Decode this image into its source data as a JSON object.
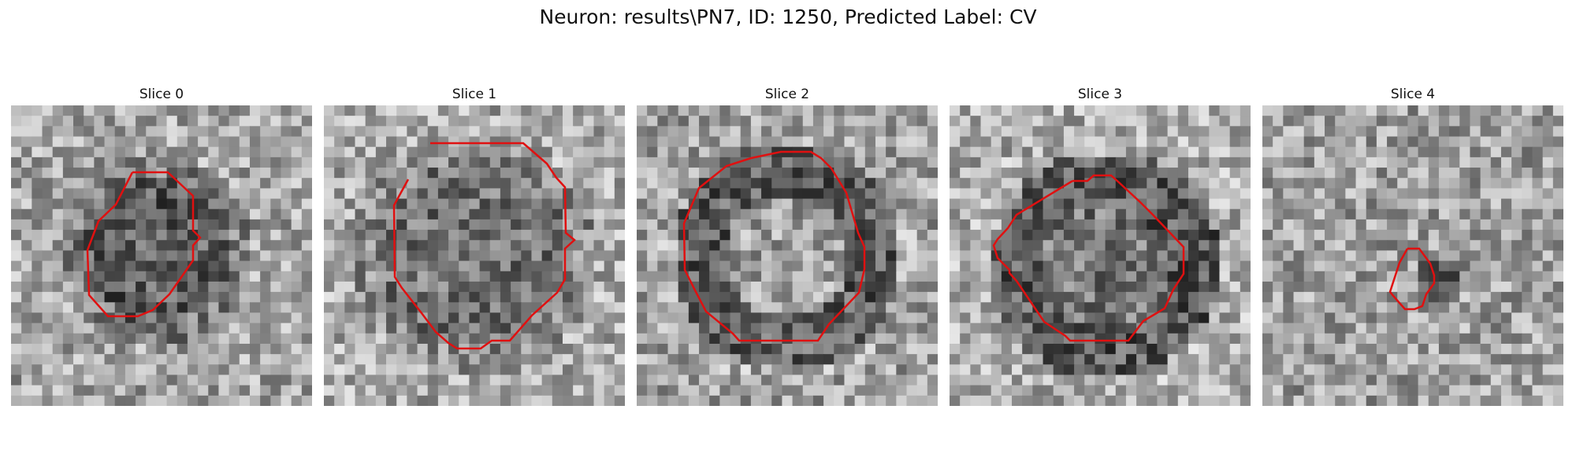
{
  "figure": {
    "title": "Neuron: results\\PN7, ID: 1250, Predicted Label: CV"
  },
  "panels": [
    {
      "title": "Slice 0",
      "blob": "dark-disc",
      "contour_color": "#e01010"
    },
    {
      "title": "Slice 1",
      "blob": "mid-disc",
      "contour_color": "#e01010"
    },
    {
      "title": "Slice 2",
      "blob": "ring",
      "contour_color": "#e01010"
    },
    {
      "title": "Slice 3",
      "blob": "dark-ring",
      "contour_color": "#e01010"
    },
    {
      "title": "Slice 4",
      "blob": "small-dark",
      "contour_color": "#e01010"
    }
  ],
  "colors": {
    "contour": "#e01010",
    "background": "#ffffff"
  }
}
